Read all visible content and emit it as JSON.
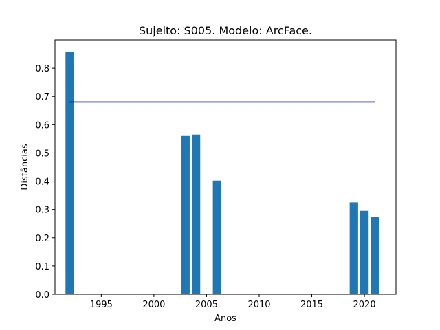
{
  "chart_data": {
    "type": "bar",
    "title": "Sujeito: S005. Modelo: ArcFace.",
    "xlabel": "Anos",
    "ylabel": "Distâncias",
    "x": [
      1992,
      2003,
      2004,
      2006,
      2019,
      2020,
      2021
    ],
    "values": [
      0.857,
      0.56,
      0.565,
      0.402,
      0.325,
      0.295,
      0.273
    ],
    "bar_color": "#1f77b4",
    "threshold": {
      "value": 0.68,
      "x_start": 1992,
      "x_end": 2021,
      "color": "#0000cc"
    },
    "xlim": [
      1990.6,
      2023.0
    ],
    "ylim": [
      0,
      0.9
    ],
    "xticks": [
      1995,
      2000,
      2005,
      2010,
      2015,
      2020
    ],
    "yticks": [
      0.0,
      0.1,
      0.2,
      0.3,
      0.4,
      0.5,
      0.6,
      0.7,
      0.8
    ],
    "grid": false
  }
}
